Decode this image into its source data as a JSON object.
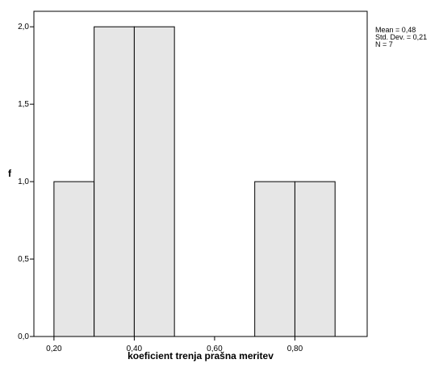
{
  "chart_data": {
    "type": "bar",
    "subtype": "histogram",
    "bins": [
      {
        "x0": 0.2,
        "x1": 0.3,
        "count": 1
      },
      {
        "x0": 0.3,
        "x1": 0.4,
        "count": 2
      },
      {
        "x0": 0.4,
        "x1": 0.5,
        "count": 2
      },
      {
        "x0": 0.5,
        "x1": 0.6,
        "count": 0
      },
      {
        "x0": 0.6,
        "x1": 0.7,
        "count": 0
      },
      {
        "x0": 0.7,
        "x1": 0.8,
        "count": 1
      },
      {
        "x0": 0.8,
        "x1": 0.9,
        "count": 1
      }
    ],
    "xlabel": "koeficient trenja prašna meritev",
    "ylabel": "f",
    "xlim": [
      0.15,
      0.98
    ],
    "ylim": [
      0,
      2.1
    ],
    "x_ticks": [
      0.2,
      0.4,
      0.6,
      0.8
    ],
    "x_tick_labels": [
      "0,20",
      "0,40",
      "0,60",
      "0,80"
    ],
    "y_ticks": [
      0,
      0.5,
      1,
      1.5,
      2
    ],
    "y_tick_labels": [
      "0,0",
      "0,5",
      "1,0",
      "1,5",
      "2,0"
    ],
    "grid": false,
    "bar_color": "#e6e6e6",
    "edge_color": "#000000",
    "stats": {
      "mean": "Mean = 0,48",
      "std": "Std. Dev. = 0,21",
      "n": "N = 7"
    },
    "legend_position": "top-right"
  }
}
